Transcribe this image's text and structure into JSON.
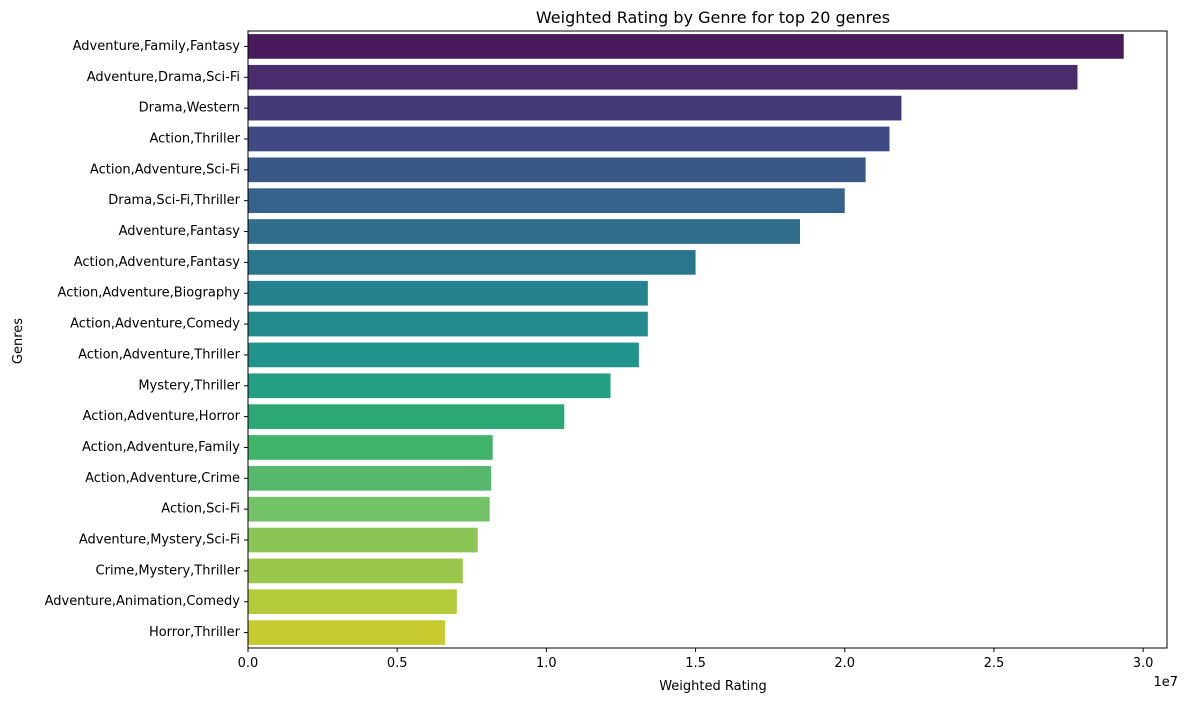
{
  "chart_data": {
    "type": "bar",
    "orientation": "horizontal",
    "title": "Weighted Rating by Genre for top 20 genres",
    "xlabel": "Weighted Rating",
    "ylabel": "Genres",
    "x_scale_note": "1e7",
    "xlim": [
      0,
      3.08
    ],
    "x_ticks": [
      "0.0",
      "0.5",
      "1.0",
      "1.5",
      "2.0",
      "2.5",
      "3.0"
    ],
    "grid": false,
    "legend": "none",
    "palette": "viridis",
    "categories": [
      "Adventure,Family,Fantasy",
      "Adventure,Drama,Sci-Fi",
      "Drama,Western",
      "Action,Thriller",
      "Action,Adventure,Sci-Fi",
      "Drama,Sci-Fi,Thriller",
      "Adventure,Fantasy",
      "Action,Adventure,Fantasy",
      "Action,Adventure,Biography",
      "Action,Adventure,Comedy",
      "Action,Adventure,Thriller",
      "Mystery,Thriller",
      "Action,Adventure,Horror",
      "Action,Adventure,Family",
      "Action,Adventure,Crime",
      "Action,Sci-Fi",
      "Adventure,Mystery,Sci-Fi",
      "Crime,Mystery,Thriller",
      "Adventure,Animation,Comedy",
      "Horror,Thriller"
    ],
    "values": [
      2.935,
      2.78,
      2.19,
      2.15,
      2.07,
      2.0,
      1.85,
      1.5,
      1.34,
      1.34,
      1.31,
      1.215,
      1.06,
      0.82,
      0.815,
      0.81,
      0.77,
      0.72,
      0.7,
      0.66
    ],
    "colors": [
      "#481a5b",
      "#482c6b",
      "#453a78",
      "#404a82",
      "#3b5788",
      "#35628b",
      "#306e8e",
      "#2a768d",
      "#26828e",
      "#238a8d",
      "#1f938c",
      "#23a083",
      "#2ca876",
      "#40b36a",
      "#56b86c",
      "#73c267",
      "#8ac555",
      "#9ac64b",
      "#b4ca3a",
      "#c6cb2f"
    ]
  }
}
